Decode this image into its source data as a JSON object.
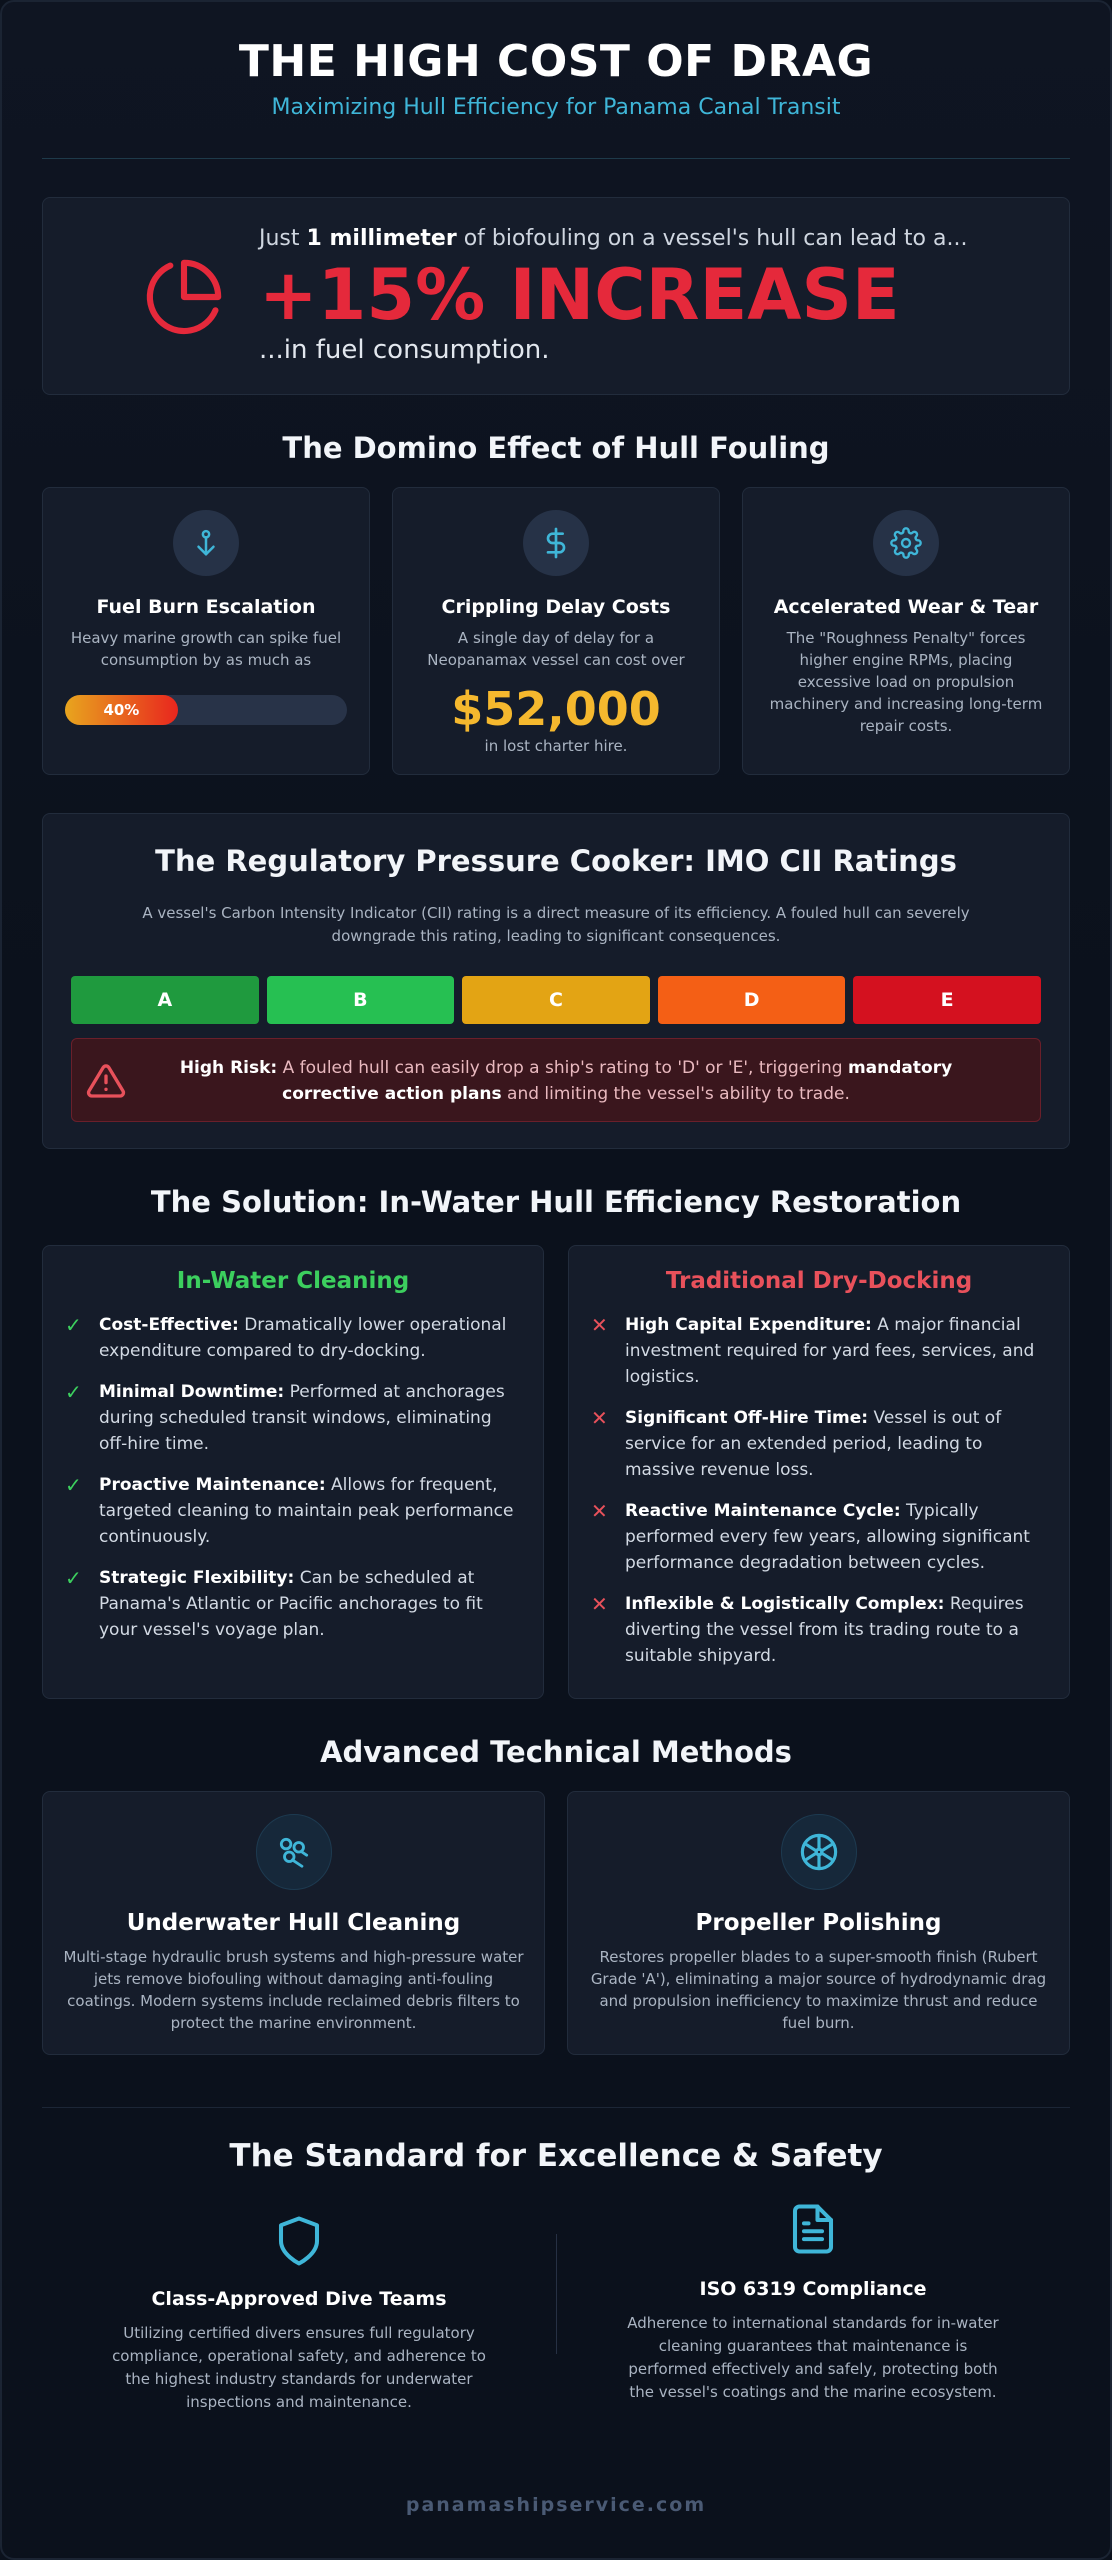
{
  "header": {
    "title": "THE HIGH COST OF DRAG",
    "subtitle": "Maximizing Hull Efficiency for Panama Canal Transit"
  },
  "hero": {
    "lead_prefix": "Just ",
    "lead_bold": "1 millimeter",
    "lead_suffix": " of biofouling on a vessel's hull can lead to a...",
    "big": "+15% INCREASE",
    "tail": "...in fuel consumption.",
    "icon": "pie-chart-icon"
  },
  "domino": {
    "title": "The Domino Effect of Hull Fouling",
    "cards": [
      {
        "icon": "anchor-icon",
        "title": "Fuel Burn Escalation",
        "text": "Heavy marine growth can spike fuel consumption by as much as",
        "bar_label": "40%",
        "bar_value": 0.4
      },
      {
        "icon": "dollar-icon",
        "title": "Crippling Delay Costs",
        "text": "A single day of delay for a Neopanamax vessel can cost over",
        "amount": "$52,000",
        "amount_note": "in lost charter hire."
      },
      {
        "icon": "gear-icon",
        "title": "Accelerated Wear & Tear",
        "text": "The \"Roughness Penalty\" forces higher engine RPMs, placing excessive load on propulsion machinery and increasing long-term repair costs."
      }
    ]
  },
  "cii": {
    "title": "The Regulatory Pressure Cooker: IMO CII Ratings",
    "text": "A vessel's Carbon Intensity Indicator (CII) rating is a direct measure of its efficiency. A fouled hull can severely downgrade this rating, leading to significant consequences.",
    "ratings": [
      {
        "label": "A",
        "color": "#1f9a3e"
      },
      {
        "label": "B",
        "color": "#26c052"
      },
      {
        "label": "C",
        "color": "#e3a414"
      },
      {
        "label": "D",
        "color": "#f45f15"
      },
      {
        "label": "E",
        "color": "#d4111f"
      }
    ],
    "risk_label": "High Risk:",
    "risk_text": " A fouled hull can easily drop a ship's rating to 'D' or 'E', triggering ",
    "risk_bold": "mandatory corrective action plans",
    "risk_tail": " and limiting the vessel's ability to trade.",
    "risk_icon": "warning-icon"
  },
  "solution": {
    "title": "The Solution: In-Water Hull Efficiency Restoration",
    "inwater": {
      "title": "In-Water Cleaning",
      "color": "#3ccf5e",
      "items": [
        {
          "bold": "Cost-Effective:",
          "text": " Dramatically lower operational expenditure compared to dry-docking."
        },
        {
          "bold": "Minimal Downtime:",
          "text": " Performed at anchorages during scheduled transit windows, eliminating off-hire time."
        },
        {
          "bold": "Proactive Maintenance:",
          "text": " Allows for frequent, targeted cleaning to maintain peak performance continuously."
        },
        {
          "bold": "Strategic Flexibility:",
          "text": " Can be scheduled at Panama's Atlantic or Pacific anchorages to fit your vessel's voyage plan."
        }
      ]
    },
    "drydock": {
      "title": "Traditional Dry-Docking",
      "color": "#e8515b",
      "items": [
        {
          "bold": "High Capital Expenditure:",
          "text": " A major financial investment required for yard fees, services, and logistics."
        },
        {
          "bold": "Significant Off-Hire Time:",
          "text": " Vessel is out of service for an extended period, leading to massive revenue loss."
        },
        {
          "bold": "Reactive Maintenance Cycle:",
          "text": " Typically performed every few years, allowing significant performance degradation between cycles."
        },
        {
          "bold": "Inflexible & Logistically Complex:",
          "text": " Requires diverting the vessel from its trading route to a suitable shipyard."
        }
      ]
    }
  },
  "methods": {
    "title": "Advanced Technical Methods",
    "cards": [
      {
        "icon": "brush-icon",
        "title": "Underwater Hull Cleaning",
        "text": "Multi-stage hydraulic brush systems and high-pressure water jets remove biofouling without damaging anti-fouling coatings. Modern systems include reclaimed debris filters to protect the marine environment."
      },
      {
        "icon": "propeller-icon",
        "title": "Propeller Polishing",
        "text": "Restores propeller blades to a super-smooth finish (Rubert Grade 'A'), eliminating a major source of hydrodynamic drag and propulsion inefficiency to maximize thrust and reduce fuel burn."
      }
    ]
  },
  "standard": {
    "title": "The Standard for Excellence & Safety",
    "cols": [
      {
        "icon": "shield-icon",
        "title": "Class-Approved Dive Teams",
        "text": "Utilizing certified divers ensures full regulatory compliance, operational safety, and adherence to the highest industry standards for underwater inspections and maintenance."
      },
      {
        "icon": "document-icon",
        "title": "ISO 6319 Compliance",
        "text": "Adherence to international standards for in-water cleaning guarantees that maintenance is performed effectively and safely, protecting both the vessel's coatings and the marine ecosystem."
      }
    ]
  },
  "footer": {
    "text": "panamashipservice.com"
  },
  "colors": {
    "accent": "#3fb6d8",
    "danger": "#e5293b",
    "gold": "#f5b82e"
  }
}
